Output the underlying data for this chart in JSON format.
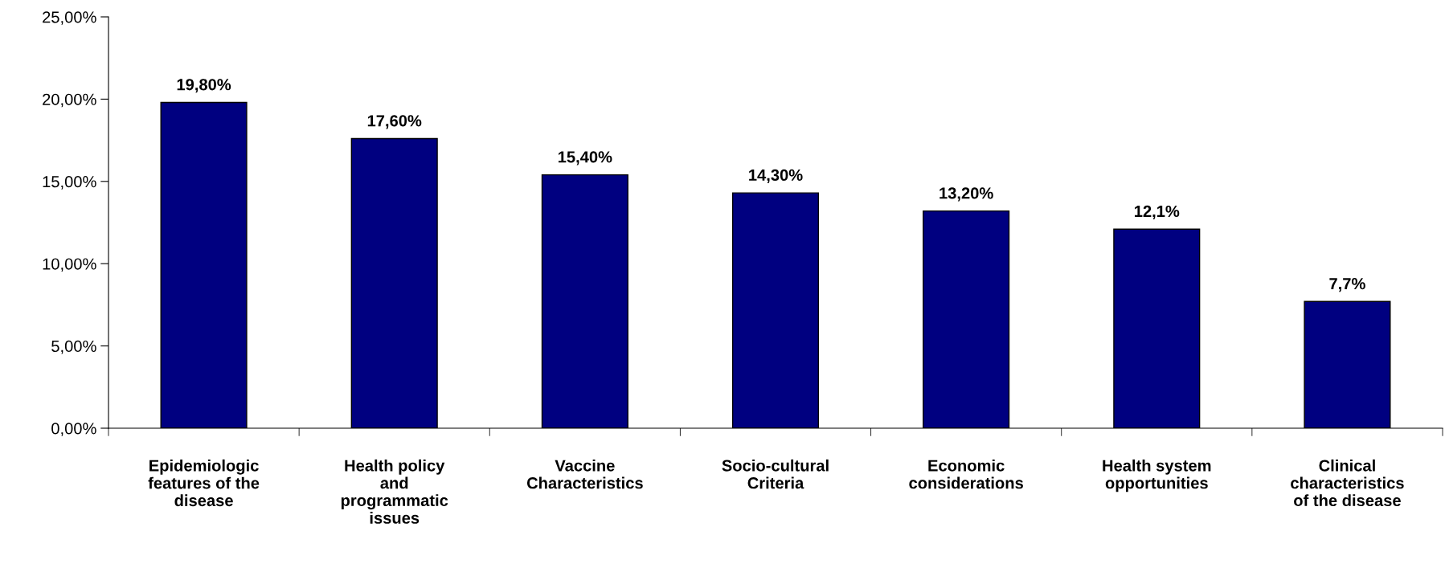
{
  "chart_data": {
    "type": "bar",
    "categories": [
      "Epidemiologic\nfeatures of the\ndisease",
      "Health policy\nand\nprogrammatic\nissues",
      "Vaccine\nCharacteristics",
      "Socio-cultural\nCriteria",
      "Economic\nconsiderations",
      "Health system\nopportunities",
      "Clinical\ncharacteristics\nof the disease"
    ],
    "values": [
      19.8,
      17.6,
      15.4,
      14.3,
      13.2,
      12.1,
      7.7
    ],
    "value_labels": [
      "19,80%",
      "17,60%",
      "15,40%",
      "14,30%",
      "13,20%",
      "12,1%",
      "7,7%"
    ],
    "color": "#000080",
    "ylim": [
      0,
      25
    ],
    "yticks": [
      {
        "value": 0,
        "label": "0,00%"
      },
      {
        "value": 5,
        "label": "5,00%"
      },
      {
        "value": 10,
        "label": "10,00%"
      },
      {
        "value": 15,
        "label": "15,00%"
      },
      {
        "value": 20,
        "label": "20,00%"
      },
      {
        "value": 25,
        "label": "25,00%"
      }
    ],
    "grid": false,
    "legend": false
  }
}
